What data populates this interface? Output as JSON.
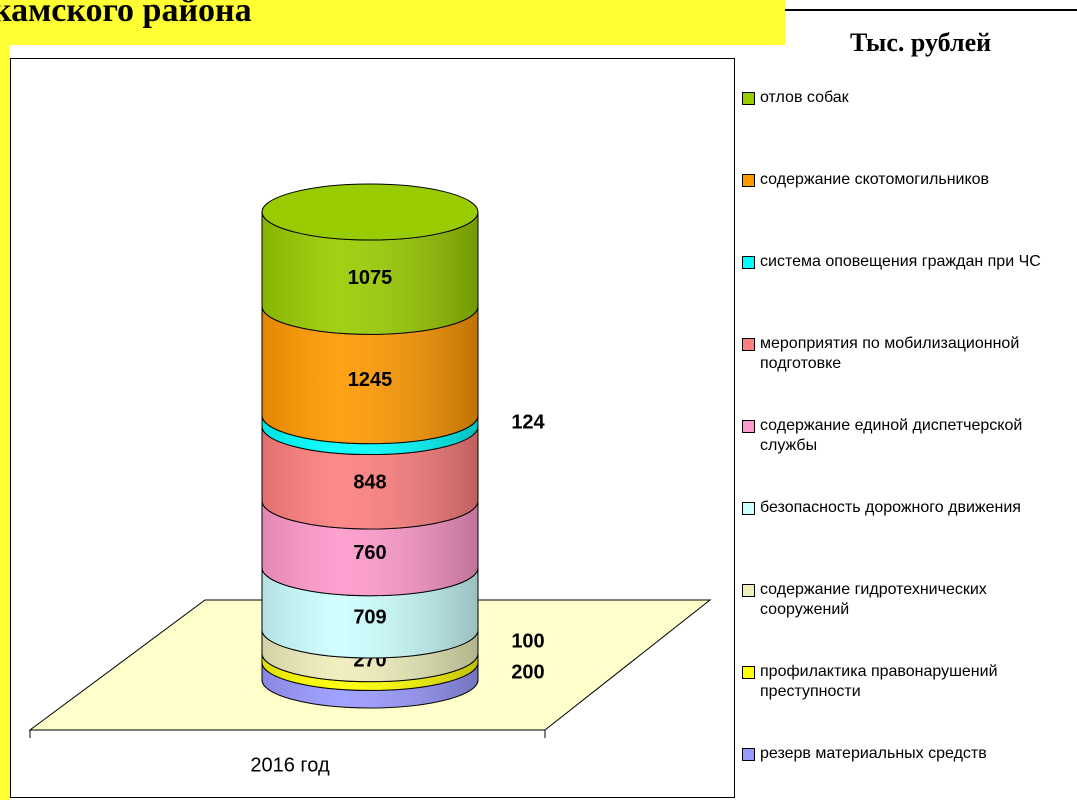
{
  "chart_data": {
    "type": "stacked-cylinder",
    "title": "камского района",
    "unit_label": "Тыс. рублей",
    "categories": [
      "2016 год"
    ],
    "series": [
      {
        "name": "резерв материальных средств",
        "color": "#9999ff",
        "values": [
          200
        ]
      },
      {
        "name": "профилактика правонарушений преступности",
        "color": "#ffff00",
        "values": [
          100
        ]
      },
      {
        "name": "содержание гидротехнических сооружений",
        "color": "#eeeebb",
        "values": [
          270
        ]
      },
      {
        "name": "безопасность дорожного движения",
        "color": "#ccffff",
        "values": [
          709
        ]
      },
      {
        "name": "содержание единой диспетчерской службы",
        "color": "#ff99cc",
        "values": [
          760
        ]
      },
      {
        "name": "мероприятия по мобилизационной подготовке",
        "color": "#ff7f7f",
        "values": [
          848
        ]
      },
      {
        "name": "система оповещения граждан при ЧС",
        "color": "#00ffff",
        "values": [
          124
        ]
      },
      {
        "name": "содержание скотомогильников",
        "color": "#ff9900",
        "values": [
          1245
        ]
      },
      {
        "name": "отлов собак",
        "color": "#99cc00",
        "values": [
          1075
        ]
      }
    ]
  }
}
